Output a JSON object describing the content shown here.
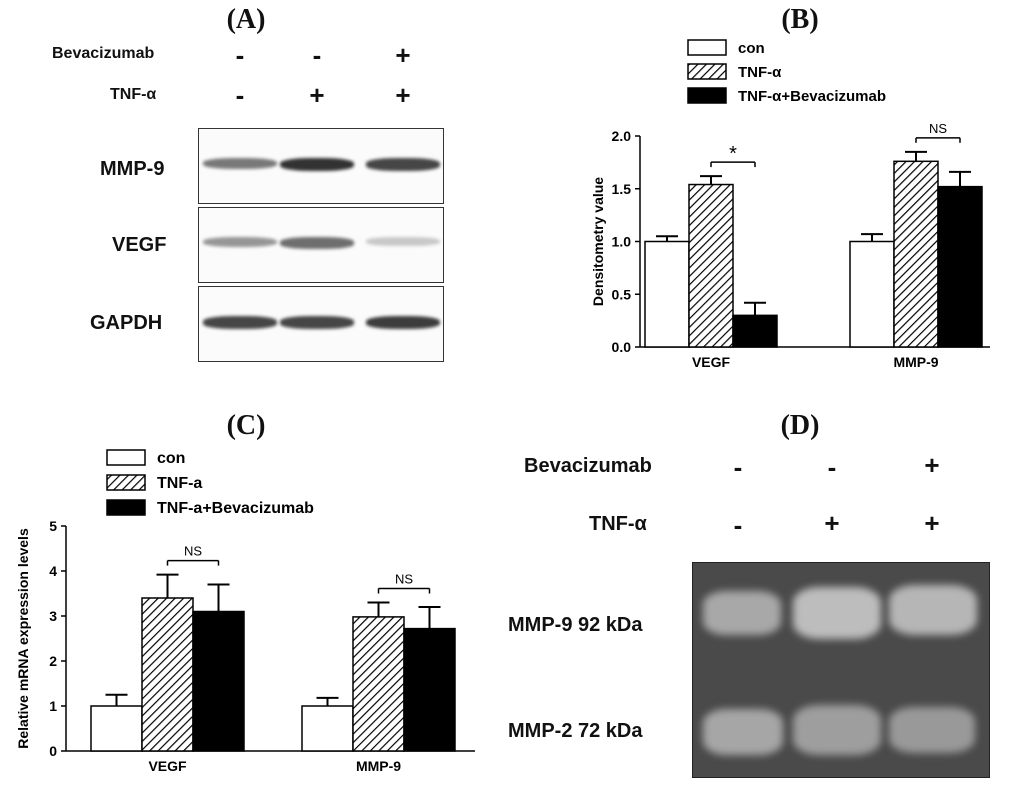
{
  "panels": {
    "a": {
      "letter": "(A)",
      "treatments": [
        {
          "label": "Bevacizumab",
          "signs": [
            "-",
            "-",
            "+"
          ]
        },
        {
          "label": "TNF-α",
          "signs": [
            "-",
            "+",
            "+"
          ]
        }
      ],
      "blots": [
        {
          "label": "MMP-9",
          "intensity": [
            0.55,
            0.9,
            0.8
          ]
        },
        {
          "label": "VEGF",
          "intensity": [
            0.4,
            0.6,
            0.15
          ]
        },
        {
          "label": "GAPDH",
          "intensity": [
            0.8,
            0.8,
            0.85
          ]
        }
      ]
    },
    "b": {
      "letter": "(B)"
    },
    "c": {
      "letter": "(C)"
    },
    "d": {
      "letter": "(D)",
      "treatments": [
        {
          "label": "Bevacizumab",
          "signs": [
            "-",
            "-",
            "+"
          ]
        },
        {
          "label": "TNF-α",
          "signs": [
            "-",
            "+",
            "+"
          ]
        }
      ],
      "bands": [
        {
          "label": "MMP-9  92 kDa"
        },
        {
          "label": "MMP-2  72 kDa"
        }
      ]
    }
  },
  "chart_data": [
    {
      "type": "bar",
      "title": "",
      "categories": [
        "VEGF",
        "MMP-9"
      ],
      "series": [
        {
          "name": "con",
          "values": [
            1.0,
            1.0
          ],
          "errors": [
            0.05,
            0.07
          ]
        },
        {
          "name": "TNF-α",
          "values": [
            1.54,
            1.76
          ],
          "errors": [
            0.08,
            0.09
          ]
        },
        {
          "name": "TNF-α+Bevacizumab",
          "values": [
            0.3,
            1.52
          ],
          "errors": [
            0.12,
            0.14
          ]
        }
      ],
      "ylabel": "Densitometry value",
      "xlabel": "",
      "ylim": [
        0,
        2.0
      ],
      "yticks": [
        "0.0",
        "0.5",
        "1.0",
        "1.5",
        "2.0"
      ],
      "significance": [
        "*",
        "NS"
      ],
      "legend_position": "top",
      "grid": false
    },
    {
      "type": "bar",
      "title": "",
      "categories": [
        "VEGF",
        "MMP-9"
      ],
      "series": [
        {
          "name": "con",
          "values": [
            1.0,
            1.0
          ],
          "errors": [
            0.25,
            0.18
          ]
        },
        {
          "name": "TNF-a",
          "values": [
            3.4,
            2.98
          ],
          "errors": [
            0.52,
            0.32
          ]
        },
        {
          "name": "TNF-a+Bevacizumab",
          "values": [
            3.1,
            2.72
          ],
          "errors": [
            0.6,
            0.48
          ]
        }
      ],
      "ylabel": "Relative mRNA expression levels",
      "xlabel": "",
      "ylim": [
        0,
        5
      ],
      "yticks": [
        "0",
        "1",
        "2",
        "3",
        "4",
        "5"
      ],
      "significance": [
        "NS",
        "NS"
      ],
      "legend_position": "top",
      "grid": false
    }
  ]
}
